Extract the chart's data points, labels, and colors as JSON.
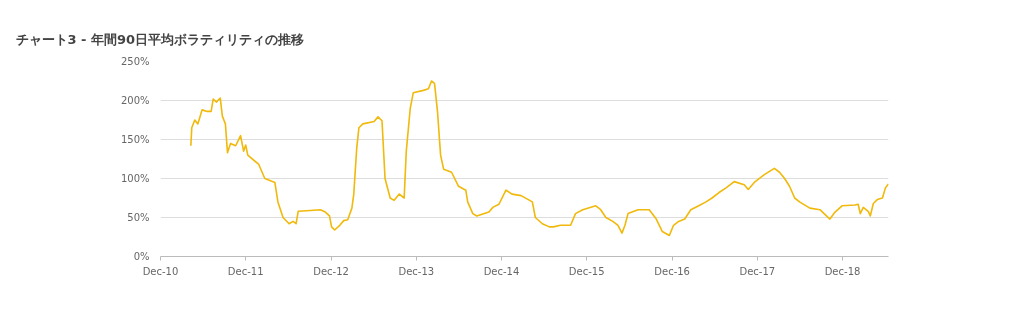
{
  "chart_data": {
    "type": "line",
    "title": "チャート3 - 年間90日平均ボラティリティの推移",
    "x": [
      "2011-04-10",
      "2011-04-14",
      "2011-04-27",
      "2011-05-10",
      "2011-05-28",
      "2011-06-19",
      "2011-07-06",
      "2011-07-15",
      "2011-07-28",
      "2011-08-14",
      "2011-08-23",
      "2011-09-05",
      "2011-09-14",
      "2011-09-27",
      "2011-10-19",
      "2011-11-09",
      "2011-11-22",
      "2011-12-01",
      "2011-12-10",
      "2012-01-26",
      "2012-02-21",
      "2012-04-04",
      "2012-04-17",
      "2012-05-09",
      "2012-06-04",
      "2012-06-21",
      "2012-07-04",
      "2012-07-13",
      "2012-09-02",
      "2012-10-16",
      "2012-11-06",
      "2012-11-24",
      "2012-12-03",
      "2012-12-16",
      "2013-01-07",
      "2013-01-24",
      "2013-02-10",
      "2013-02-28",
      "2013-03-08",
      "2013-03-21",
      "2013-03-30",
      "2013-04-16",
      "2013-06-03",
      "2013-06-20",
      "2013-07-07",
      "2013-07-20",
      "2013-08-11",
      "2013-08-28",
      "2013-09-19",
      "2013-10-10",
      "2013-10-19",
      "2013-11-05",
      "2013-11-18",
      "2013-12-31",
      "2014-01-22",
      "2014-02-04",
      "2014-02-17",
      "2014-03-02",
      "2014-03-15",
      "2014-03-28",
      "2014-05-01",
      "2014-05-31",
      "2014-07-01",
      "2014-07-09",
      "2014-07-31",
      "2014-08-17",
      "2014-10-08",
      "2014-10-25",
      "2014-11-20",
      "2014-12-20",
      "2015-01-15",
      "2015-02-23",
      "2015-04-12",
      "2015-04-25",
      "2015-05-25",
      "2015-06-24",
      "2015-07-11",
      "2015-08-11",
      "2015-09-23",
      "2015-10-14",
      "2015-11-14",
      "2016-01-09",
      "2016-01-30",
      "2016-02-21",
      "2016-03-22",
      "2016-04-13",
      "2016-04-30",
      "2016-05-13",
      "2016-05-26",
      "2016-07-08",
      "2016-08-25",
      "2016-09-24",
      "2016-10-20",
      "2016-11-19",
      "2016-12-07",
      "2016-12-29",
      "2017-01-24",
      "2017-02-19",
      "2017-03-25",
      "2017-04-25",
      "2017-05-21",
      "2017-06-20",
      "2017-07-20",
      "2017-08-24",
      "2017-10-06",
      "2017-10-23",
      "2017-11-18",
      "2017-12-31",
      "2018-02-12",
      "2018-03-06",
      "2018-03-28",
      "2018-04-18",
      "2018-05-10",
      "2018-05-31",
      "2018-07-14",
      "2018-08-26",
      "2018-10-08",
      "2018-10-30",
      "2018-11-29",
      "2019-01-24",
      "2019-02-06",
      "2019-02-15",
      "2019-02-28",
      "2019-03-21",
      "2019-03-30",
      "2019-04-12",
      "2019-04-29",
      "2019-05-21",
      "2019-06-03",
      "2019-06-16"
    ],
    "series": [
      {
        "color": "#f0b90b",
        "values": [
          142,
          165,
          175,
          170,
          188,
          186,
          186,
          202,
          198,
          203,
          180,
          170,
          133,
          145,
          142,
          155,
          135,
          143,
          130,
          118,
          100,
          95,
          70,
          50,
          42,
          45,
          42,
          58,
          59,
          60,
          57,
          52,
          38,
          34,
          40,
          46,
          47,
          62,
          80,
          140,
          165,
          170,
          173,
          179,
          174,
          100,
          75,
          72,
          80,
          75,
          135,
          190,
          210,
          213,
          215,
          225,
          222,
          185,
          130,
          112,
          108,
          90,
          85,
          70,
          55,
          52,
          57,
          63,
          67,
          85,
          80,
          78,
          70,
          50,
          42,
          38,
          38,
          40,
          40,
          55,
          60,
          65,
          60,
          50,
          45,
          40,
          30,
          40,
          55,
          60,
          60,
          48,
          32,
          27,
          40,
          45,
          48,
          60,
          65,
          70,
          75,
          82,
          88,
          96,
          92,
          86,
          95,
          105,
          113,
          108,
          100,
          90,
          75,
          70,
          62,
          60,
          48,
          57,
          65,
          66,
          67,
          55,
          63,
          58,
          52,
          68,
          73,
          75,
          88,
          93
        ]
      }
    ],
    "xlim": [
      "2010-12-01",
      "2019-06-16"
    ],
    "xticks": [
      {
        "value": "2010-12-01",
        "label": "Dec-10"
      },
      {
        "value": "2011-12-01",
        "label": "Dec-11"
      },
      {
        "value": "2012-12-01",
        "label": "Dec-12"
      },
      {
        "value": "2013-12-01",
        "label": "Dec-13"
      },
      {
        "value": "2014-12-01",
        "label": "Dec-14"
      },
      {
        "value": "2015-12-01",
        "label": "Dec-15"
      },
      {
        "value": "2016-12-01",
        "label": "Dec-16"
      },
      {
        "value": "2017-12-01",
        "label": "Dec-17"
      },
      {
        "value": "2018-12-01",
        "label": "Dec-18"
      }
    ],
    "ylim": [
      0,
      250
    ],
    "yticks": [
      {
        "value": 0,
        "label": "0%"
      },
      {
        "value": 50,
        "label": "50%"
      },
      {
        "value": 100,
        "label": "100%"
      },
      {
        "value": 150,
        "label": "150%"
      },
      {
        "value": 200,
        "label": "200%"
      },
      {
        "value": 250,
        "label": "250%"
      }
    ],
    "grid": "y",
    "marker": "none",
    "line_style": "solid"
  }
}
